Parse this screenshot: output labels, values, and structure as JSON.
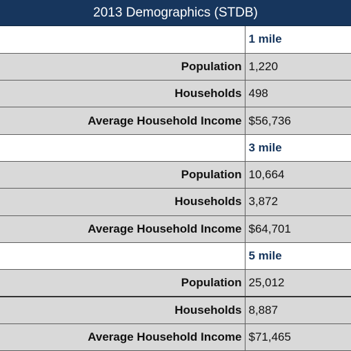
{
  "title": "2013 Demographics (STDB)",
  "sections": [
    {
      "radius": "1 mile",
      "rows": [
        {
          "label": "Population",
          "value": "1,220"
        },
        {
          "label": "Households",
          "value": "498"
        },
        {
          "label": "Average Household Income",
          "value": "$56,736"
        }
      ]
    },
    {
      "radius": "3 mile",
      "rows": [
        {
          "label": "Population",
          "value": "10,664"
        },
        {
          "label": "Households",
          "value": "3,872"
        },
        {
          "label": "Average Household Income",
          "value": "$64,701"
        }
      ]
    },
    {
      "radius": "5 mile",
      "rows": [
        {
          "label": "Population",
          "value": "25,012"
        },
        {
          "label": "Households",
          "value": "8,887"
        },
        {
          "label": "Average Household Income",
          "value": "$71,465"
        }
      ]
    }
  ]
}
